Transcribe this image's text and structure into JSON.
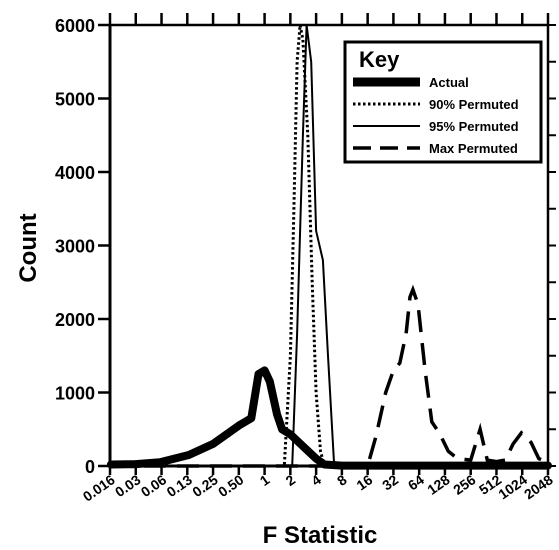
{
  "chart_data": {
    "type": "line",
    "xlabel": "F Statistic",
    "ylabel": "Count",
    "x_scale": "log2",
    "x_ticks": [
      "0.016",
      "0.03",
      "0.06",
      "0.13",
      "0.25",
      "0.50",
      "1",
      "2",
      "4",
      "8",
      "16",
      "32",
      "64",
      "128",
      "256",
      "512",
      "1024",
      "2048"
    ],
    "y_ticks": [
      "0",
      "1000",
      "2000",
      "3000",
      "4000",
      "5000",
      "6000"
    ],
    "ylim": [
      0,
      6000
    ],
    "legend": {
      "title": "Key",
      "position": "top-right"
    },
    "series": [
      {
        "name": "Actual",
        "style": "thick-solid",
        "points": [
          [
            0.016,
            20
          ],
          [
            0.03,
            25
          ],
          [
            0.06,
            50
          ],
          [
            0.13,
            150
          ],
          [
            0.25,
            300
          ],
          [
            0.5,
            550
          ],
          [
            0.7,
            650
          ],
          [
            0.85,
            1250
          ],
          [
            1,
            1300
          ],
          [
            1.15,
            1150
          ],
          [
            1.4,
            700
          ],
          [
            1.6,
            500
          ],
          [
            2,
            430
          ],
          [
            4,
            100
          ],
          [
            5,
            20
          ],
          [
            8,
            5
          ],
          [
            2048,
            5
          ]
        ]
      },
      {
        "name": "90% Permuted",
        "style": "dotted",
        "points": [
          [
            0.016,
            0
          ],
          [
            1.7,
            0
          ],
          [
            2,
            1500
          ],
          [
            2.2,
            3500
          ],
          [
            2.4,
            5500
          ],
          [
            2.6,
            6000
          ],
          [
            2.8,
            5800
          ],
          [
            3.2,
            4500
          ],
          [
            3.6,
            2500
          ],
          [
            4,
            1000
          ],
          [
            4.5,
            200
          ],
          [
            5,
            0
          ],
          [
            2048,
            0
          ]
        ]
      },
      {
        "name": "95% Permuted",
        "style": "thin-solid",
        "points": [
          [
            0.016,
            0
          ],
          [
            2.1,
            0
          ],
          [
            2.4,
            1800
          ],
          [
            2.8,
            4500
          ],
          [
            3.1,
            6000
          ],
          [
            3.5,
            5500
          ],
          [
            4,
            3200
          ],
          [
            4.8,
            2800
          ],
          [
            5.5,
            1500
          ],
          [
            6.5,
            0
          ],
          [
            2048,
            0
          ]
        ]
      },
      {
        "name": "Max Permuted",
        "style": "dashed",
        "points": [
          [
            0.016,
            0
          ],
          [
            16,
            0
          ],
          [
            20,
            400
          ],
          [
            26,
            1000
          ],
          [
            32,
            1300
          ],
          [
            38,
            1400
          ],
          [
            45,
            1800
          ],
          [
            50,
            2300
          ],
          [
            54,
            2400
          ],
          [
            62,
            2200
          ],
          [
            75,
            1300
          ],
          [
            90,
            600
          ],
          [
            110,
            450
          ],
          [
            140,
            200
          ],
          [
            180,
            100
          ],
          [
            256,
            80
          ],
          [
            330,
            500
          ],
          [
            400,
            80
          ],
          [
            512,
            60
          ],
          [
            650,
            80
          ],
          [
            800,
            300
          ],
          [
            1000,
            450
          ],
          [
            1300,
            320
          ],
          [
            1600,
            100
          ],
          [
            2048,
            50
          ]
        ]
      }
    ]
  }
}
